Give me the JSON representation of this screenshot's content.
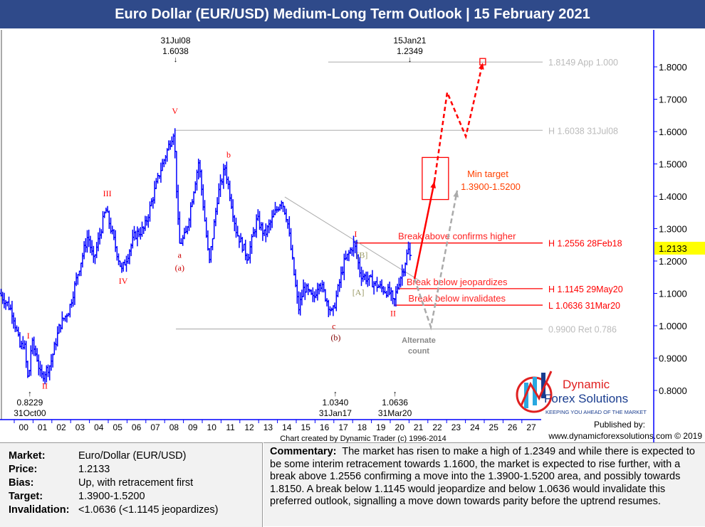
{
  "title": "Euro Dollar (EUR/USD) Medium-Long Term Outlook | 15 February 2021",
  "chart_data": {
    "type": "bar",
    "subtype": "ohlc-monthly-with-elliott-wave-annotations",
    "series_color": "#0000ff",
    "ylim": [
      0.75,
      1.9
    ],
    "y_ticks": [
      "0.8000",
      "0.9000",
      "1.0000",
      "1.1000",
      "1.2000",
      "1.3000",
      "1.4000",
      "1.5000",
      "1.6000",
      "1.7000",
      "1.8000"
    ],
    "x_ticks": [
      "00",
      "01",
      "02",
      "03",
      "04",
      "05",
      "06",
      "07",
      "08",
      "09",
      "10",
      "11",
      "12",
      "13",
      "14",
      "15",
      "16",
      "17",
      "18",
      "19",
      "20",
      "21",
      "22",
      "23",
      "24",
      "25",
      "26",
      "27"
    ],
    "current_price": "1.2133",
    "price_pivots": [
      [
        1999.3,
        1.1
      ],
      [
        1999.7,
        1.07
      ],
      [
        2000.0,
        1.04
      ],
      [
        2000.4,
        0.93
      ],
      [
        2000.6,
        0.95
      ],
      [
        2000.83,
        0.8229
      ],
      [
        2001.0,
        0.95
      ],
      [
        2001.3,
        0.9
      ],
      [
        2001.5,
        0.84
      ],
      [
        2002.0,
        0.88
      ],
      [
        2002.5,
        1.0
      ],
      [
        2003.0,
        1.05
      ],
      [
        2003.5,
        1.17
      ],
      [
        2004.0,
        1.28
      ],
      [
        2004.3,
        1.2
      ],
      [
        2004.95,
        1.36
      ],
      [
        2005.8,
        1.17
      ],
      [
        2006.5,
        1.28
      ],
      [
        2007.0,
        1.3
      ],
      [
        2007.8,
        1.47
      ],
      [
        2008.58,
        1.6038
      ],
      [
        2008.85,
        1.25
      ],
      [
        2009.2,
        1.28
      ],
      [
        2009.9,
        1.51
      ],
      [
        2010.45,
        1.19
      ],
      [
        2010.9,
        1.4
      ],
      [
        2011.3,
        1.49
      ],
      [
        2011.9,
        1.29
      ],
      [
        2012.5,
        1.21
      ],
      [
        2013.0,
        1.33
      ],
      [
        2013.4,
        1.28
      ],
      [
        2014.3,
        1.39
      ],
      [
        2014.6,
        1.33
      ],
      [
        2015.2,
        1.05
      ],
      [
        2015.5,
        1.12
      ],
      [
        2016.0,
        1.08
      ],
      [
        2016.3,
        1.14
      ],
      [
        2016.9,
        1.05
      ],
      [
        2017.0,
        1.034
      ],
      [
        2017.6,
        1.19
      ],
      [
        2018.16,
        1.2556
      ],
      [
        2018.5,
        1.16
      ],
      [
        2019.0,
        1.14
      ],
      [
        2019.5,
        1.12
      ],
      [
        2020.1,
        1.1
      ],
      [
        2020.25,
        1.0636
      ],
      [
        2020.5,
        1.13
      ],
      [
        2020.8,
        1.18
      ],
      [
        2021.04,
        1.2349
      ],
      [
        2021.12,
        1.2133
      ]
    ],
    "levels": [
      {
        "label": "0.9900 Ret 0.786",
        "price": 0.99,
        "from": 2008.6,
        "color": "#bbbbbb"
      },
      {
        "label": "L 1.0636 31Mar20",
        "price": 1.0636,
        "from": 2020.25,
        "color": "#ff0000"
      },
      {
        "label": "H 1.1145 29May20",
        "price": 1.1145,
        "from": 2020.4,
        "color": "#ff0000"
      },
      {
        "label": "H 1.2556 28Feb18",
        "price": 1.2556,
        "from": 2018.16,
        "color": "#ff0000"
      },
      {
        "label": "H 1.6038 31Jul08",
        "price": 1.6038,
        "from": 2008.58,
        "color": "#bbbbbb"
      },
      {
        "label": "1.8149 App 1.000",
        "price": 1.8149,
        "from": 2016.7,
        "color": "#bbbbbb"
      }
    ],
    "level_notes": [
      {
        "text": "Break above confirms higher",
        "price": 1.2556
      },
      {
        "text": "Break below jeopardizes",
        "price": 1.1145
      },
      {
        "text": "Break below invalidates",
        "price": 1.0636
      }
    ],
    "trendline": [
      [
        2014.39,
        1.398
      ],
      [
        2021.59,
        1.138
      ]
    ],
    "forecast_primary": [
      [
        2021.29,
        1.145
      ],
      [
        2022.35,
        1.446
      ]
    ],
    "forecast_primary_ext": [
      [
        2022.35,
        1.446
      ],
      [
        2023.03,
        1.721
      ],
      [
        2024.02,
        1.585
      ],
      [
        2024.92,
        1.813
      ]
    ],
    "forecast_alternate": [
      [
        2021.29,
        1.145
      ],
      [
        2022.16,
        0.996
      ],
      [
        2023.56,
        1.418
      ]
    ],
    "target_box": {
      "t": [
        2021.7,
        2023.1
      ],
      "p": [
        1.39,
        1.52
      ],
      "label1": "Min target",
      "label2": "1.3900-1.5200"
    },
    "target_square_price": 1.8149,
    "alternate_label": [
      "Alternate",
      "count"
    ],
    "wave_labels": [
      {
        "text": "I",
        "t": 2000.75,
        "p": 0.96,
        "color": "#ff0000"
      },
      {
        "text": "II",
        "t": 2001.1,
        "p": 0.79,
        "color": "#ff0000"
      },
      {
        "text": "III",
        "t": 2004.95,
        "p": 1.4,
        "color": "#ff0000"
      },
      {
        "text": "IV",
        "t": 2005.8,
        "p": 1.13,
        "color": "#ff0000"
      },
      {
        "text": "V",
        "t": 2008.55,
        "p": 1.655,
        "color": "#ff0000"
      },
      {
        "text": "a",
        "t": 2008.8,
        "p": 1.21,
        "color": "#cc0000"
      },
      {
        "text": "(a)",
        "t": 2008.8,
        "p": 1.17,
        "color": "#cc0000"
      },
      {
        "text": "b",
        "t": 2011.4,
        "p": 1.52,
        "color": "#ff0000"
      },
      {
        "text": "c",
        "t": 2017.0,
        "p": 0.99,
        "color": "#cc0000"
      },
      {
        "text": "(b)",
        "t": 2017.1,
        "p": 0.955,
        "color": "#800000"
      },
      {
        "text": "I",
        "t": 2018.16,
        "p": 1.275,
        "color": "#ff0000"
      },
      {
        "text": "[B]",
        "t": 2018.5,
        "p": 1.21,
        "color": "#999966"
      },
      {
        "text": "[A]",
        "t": 2018.3,
        "p": 1.095,
        "color": "#999966"
      },
      {
        "text": "II",
        "t": 2020.15,
        "p": 1.03,
        "color": "#ff0000"
      }
    ],
    "price_callouts": [
      {
        "date": "31Jul08",
        "price": "1.6038",
        "t": 2008.58,
        "dir": "down"
      },
      {
        "date": "15Jan21",
        "price": "1.2349",
        "t": 2021.04,
        "dir": "down"
      },
      {
        "date": "31Oct00",
        "price": "0.8229",
        "t": 2000.83,
        "dir": "up"
      },
      {
        "date": "31Jan17",
        "price": "1.0340",
        "t": 2017.08,
        "dir": "up"
      },
      {
        "date": "31Mar20",
        "price": "1.0636",
        "t": 2020.25,
        "dir": "up"
      }
    ],
    "credit": "Chart created by Dynamic Trader  (c) 1996-2014"
  },
  "logo": {
    "line1": "Dynamic",
    "line2": "Forex Solutions",
    "tagline": "KEEPING YOU AHEAD OF THE MARKET"
  },
  "published_by": "Published by:",
  "website": "www.dynamicforexsolutions.com © 2019",
  "info": {
    "market_label": "Market:",
    "market": "Euro/Dollar (EUR/USD)",
    "price_label": "Price:",
    "price": "1.2133",
    "bias_label": "Bias:",
    "bias": "Up, with retracement first",
    "target_label": "Target:",
    "target": "1.3900-1.5200",
    "invalidation_label": "Invalidation:",
    "invalidation": "<1.0636 (<1.1145 jeopardizes)"
  },
  "commentary": {
    "label": "Commentary:",
    "text": "The market has risen to make a high of 1.2349 and while there is expected to be some interim retracement towards 1.1600, the market is expected to rise further, with a break above 1.2556 confirming a move into the 1.3900-1.5200 area, and possibly towards 1.8150.  A break below 1.1145 would jeopardize and below 1.0636 would invalidate this preferred outlook, signalling a move down towards parity before the uptrend resumes."
  }
}
